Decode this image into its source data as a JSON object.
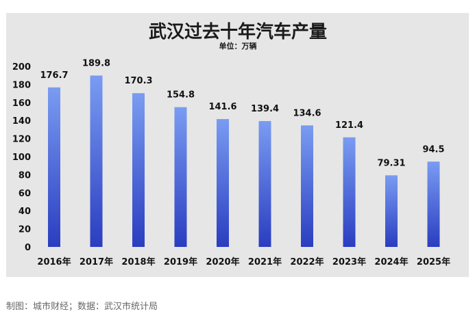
{
  "chart_data": {
    "type": "bar",
    "title": "武汉过去十年汽车产量",
    "subtitle": "单位：万辆",
    "categories": [
      "2016年",
      "2017年",
      "2018年",
      "2019年",
      "2020年",
      "2021年",
      "2022年",
      "2023年",
      "2024年",
      "2025年"
    ],
    "values": [
      176.7,
      189.8,
      170.3,
      154.8,
      141.6,
      139.4,
      134.6,
      121.4,
      79.31,
      94.5
    ],
    "value_labels": [
      "176.7",
      "189.8",
      "170.3",
      "154.8",
      "141.6",
      "139.4",
      "134.6",
      "121.4",
      "79.31",
      "94.5"
    ],
    "ylim": [
      0,
      200
    ],
    "yticks": [
      0,
      20,
      40,
      60,
      80,
      100,
      120,
      140,
      160,
      180,
      200
    ],
    "grid": false,
    "legend": "none",
    "colors": {
      "bar_top": "#7a9cf2",
      "bar_bottom": "#2a3dc0",
      "panel_bg": "#e6e6e6"
    }
  },
  "footer": {
    "source": "制图：城市财经；数据：武汉市统计局"
  }
}
